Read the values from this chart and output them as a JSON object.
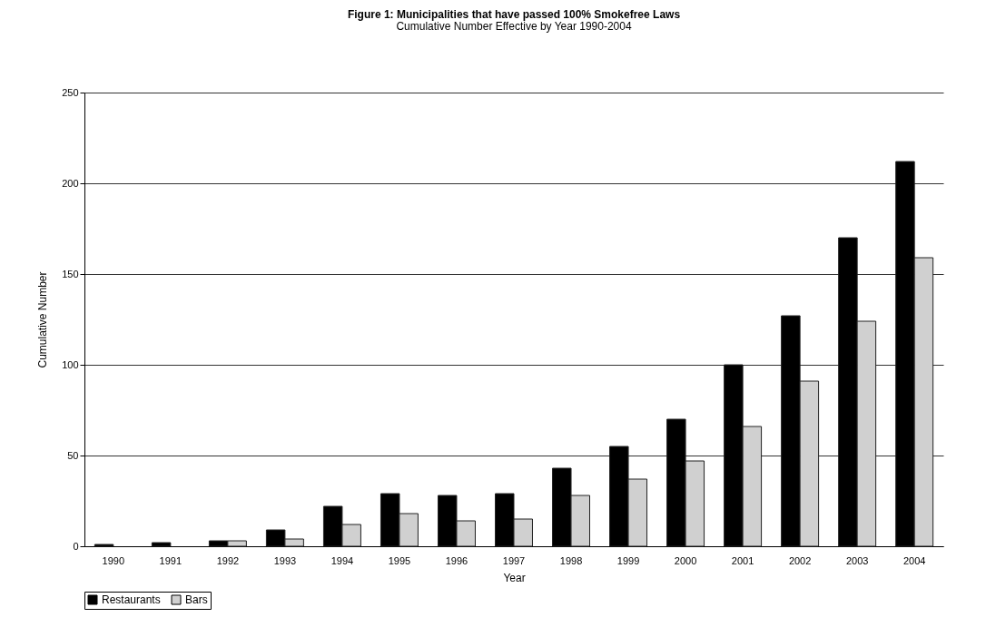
{
  "chart_data": {
    "type": "bar",
    "title": "Figure 1: Municipalities that have passed 100% Smokefree Laws",
    "subtitle": "Cumulative Number Effective by Year 1990-2004",
    "xlabel": "Year",
    "ylabel": "Cumulative Number",
    "categories": [
      "1990",
      "1991",
      "1992",
      "1993",
      "1994",
      "1995",
      "1996",
      "1997",
      "1998",
      "1999",
      "2000",
      "2001",
      "2002",
      "2003",
      "2004"
    ],
    "series": [
      {
        "name": "Restaurants",
        "color": "#000000",
        "values": [
          1,
          2,
          3,
          9,
          22,
          29,
          28,
          29,
          43,
          55,
          70,
          100,
          127,
          170,
          212
        ]
      },
      {
        "name": "Bars",
        "color": "#d0d0d0",
        "values": [
          0,
          0,
          3,
          4,
          12,
          18,
          14,
          15,
          28,
          37,
          47,
          66,
          91,
          124,
          159
        ]
      }
    ],
    "ylim": [
      0,
      250
    ],
    "yticks": [
      0,
      50,
      100,
      150,
      200,
      250
    ],
    "grid": "y",
    "legend": "bottom"
  }
}
